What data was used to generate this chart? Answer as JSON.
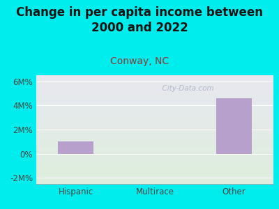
{
  "title": "Change in per capita income between\n2000 and 2022",
  "subtitle": "Conway, NC",
  "categories": [
    "Hispanic",
    "Multirace",
    "Other"
  ],
  "values": [
    1.0,
    0.0,
    4.6
  ],
  "bar_color": "#b8a0cc",
  "background_color": "#00eded",
  "plot_bg_top": "#e8e8f0",
  "plot_bg_bottom": "#deeedd",
  "title_fontsize": 12,
  "subtitle_fontsize": 10,
  "subtitle_color": "#8b3a3a",
  "tick_label_color": "#444444",
  "ylim": [
    -2.5,
    6.5
  ],
  "yticks": [
    -2,
    0,
    2,
    4,
    6
  ],
  "ytick_labels": [
    "-2M%",
    "0%",
    "2M%",
    "4M%",
    "6M%"
  ],
  "watermark": "  City-Data.com",
  "watermark_color": "#aab0c0",
  "grid_color": "#ffffff"
}
